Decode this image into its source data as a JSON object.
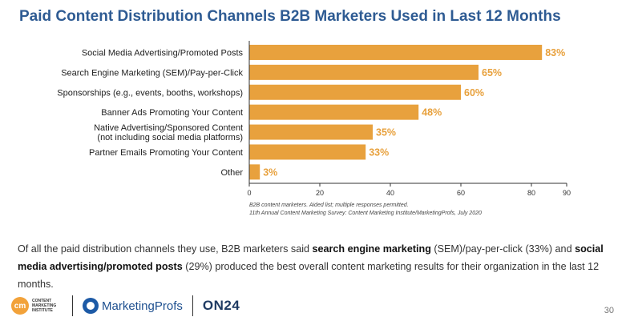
{
  "title": "Paid Content Distribution Channels B2B Marketers Used in Last 12 Months",
  "chart_data": {
    "type": "bar",
    "orientation": "horizontal",
    "categories": [
      "Social Media Advertising/Promoted Posts",
      "Search Engine Marketing (SEM)/Pay-per-Click",
      "Sponsorships (e.g., events, booths, workshops)",
      "Banner Ads Promoting Your Content",
      "Native Advertising/Sponsored Content\n(not including social media platforms)",
      "Partner Emails Promoting Your Content",
      "Other"
    ],
    "values": [
      83,
      65,
      60,
      48,
      35,
      33,
      3
    ],
    "value_labels": [
      "83%",
      "65%",
      "60%",
      "48%",
      "35%",
      "33%",
      "3%"
    ],
    "xlim": [
      0,
      90
    ],
    "xticks": [
      0,
      20,
      40,
      60,
      80,
      90
    ],
    "bar_color": "#e8a13d",
    "value_label_color": "#e8a13d",
    "grid": false
  },
  "notes": {
    "line1": "B2B content marketers. Aided list; multiple responses permitted.",
    "line2": "11th Annual Content Marketing Survey: Content Marketing Institute/MarketingProfs, July 2020"
  },
  "summary": {
    "part1": "Of all the paid distribution  channels they use, B2B marketers said ",
    "bold1": "search engine marketing",
    "part2": " (SEM)/pay-per-click (33%) and ",
    "bold2": "social media advertising/promoted posts",
    "part3": " (29%) produced the best overall content marketing results for their organization in the last 12 months."
  },
  "footer": {
    "cmi_mark": "cm",
    "cmi_text": "CONTENT MARKETING INSTITUTE",
    "marketingprofs": "MarketingProfs",
    "on24": "ON24",
    "page_number": "30"
  },
  "colors": {
    "title": "#2e5b93",
    "bar": "#e8a13d",
    "axis": "#333333"
  }
}
